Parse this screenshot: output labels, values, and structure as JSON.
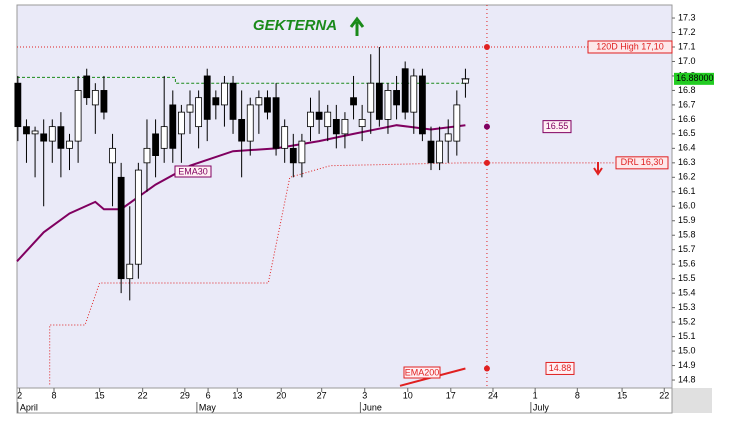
{
  "chart_data": {
    "type": "candlestick",
    "title": "GEKTERNA",
    "title_color": "#1a8a1a",
    "background": "#eaeaf8",
    "up_color": "#ffffff",
    "down_color": "#000000",
    "xlim": [
      -0.1,
      76
    ],
    "ylim": [
      14.745,
      17.39
    ],
    "yticks": [
      17.3,
      17.2,
      17.1,
      {
        "value": 17,
        "label": "17.0"
      },
      16.9,
      16.8,
      16.7,
      16.6,
      16.5,
      16.4,
      16.3,
      16.2,
      16.1,
      {
        "value": 16,
        "label": "16.0"
      },
      15.9,
      15.8,
      15.7,
      15.6,
      15.5,
      15.4,
      15.3,
      15.2,
      15.1,
      {
        "value": 15,
        "label": "15.0"
      },
      14.9,
      14.8
    ],
    "xticks": [
      {
        "value": 0.2,
        "label": "2"
      },
      {
        "value": 4.2,
        "label": "8"
      },
      {
        "value": 9.5,
        "label": "15"
      },
      {
        "value": 14.5,
        "label": "22"
      },
      {
        "value": 19.4,
        "label": "29"
      },
      {
        "value": 22.1,
        "label": "6"
      },
      {
        "value": 25.5,
        "label": "13"
      },
      {
        "value": 30.6,
        "label": "20"
      },
      {
        "value": 35.3,
        "label": "27"
      },
      {
        "value": 40.3,
        "label": "3"
      },
      {
        "value": 45.3,
        "label": "10"
      },
      {
        "value": 50.3,
        "label": "17"
      },
      {
        "value": 55.2,
        "label": "24"
      },
      {
        "value": 60.1,
        "label": "1"
      },
      {
        "value": 65,
        "label": "8"
      },
      {
        "value": 70.2,
        "label": "15"
      },
      {
        "value": 75.1,
        "label": "22"
      }
    ],
    "month_labels": [
      {
        "value": 0,
        "label": "April"
      },
      {
        "value": 20.8,
        "label": "May"
      },
      {
        "value": 39.8,
        "label": "June"
      },
      {
        "value": 59.6,
        "label": "July"
      }
    ],
    "x": [
      0,
      1,
      2,
      3,
      4,
      5,
      6,
      7,
      8,
      9,
      10,
      11,
      12,
      13,
      14,
      15,
      16,
      17,
      18,
      19,
      20,
      21,
      22,
      23,
      24,
      25,
      26,
      27,
      28,
      29,
      30,
      31,
      32,
      33,
      34,
      35,
      36,
      37,
      38,
      39,
      40,
      41,
      42,
      43,
      44,
      45,
      46,
      47,
      48,
      49,
      50,
      51,
      52
    ],
    "open": [
      16.85,
      16.55,
      16.5,
      16.5,
      16.45,
      16.55,
      16.4,
      16.45,
      16.9,
      16.7,
      16.8,
      16.3,
      16.2,
      15.5,
      15.6,
      16.3,
      16.5,
      16.4,
      16.7,
      16.5,
      16.65,
      16.55,
      16.9,
      16.75,
      16.7,
      16.85,
      16.6,
      16.45,
      16.7,
      16.75,
      16.75,
      16.4,
      16.4,
      16.3,
      16.55,
      16.65,
      16.55,
      16.6,
      16.5,
      16.75,
      16.55,
      16.65,
      16.85,
      16.6,
      16.8,
      16.95,
      16.65,
      16.9,
      16.45,
      16.3,
      16.45,
      16.45,
      16.85
    ],
    "high": [
      16.9,
      16.6,
      16.55,
      16.6,
      16.6,
      16.65,
      16.5,
      16.9,
      16.95,
      16.85,
      16.9,
      16.5,
      16.3,
      16.0,
      16.3,
      16.6,
      16.6,
      16.9,
      16.8,
      16.7,
      16.8,
      16.8,
      16.95,
      16.8,
      16.9,
      16.9,
      16.8,
      16.75,
      16.8,
      16.8,
      16.85,
      16.6,
      16.5,
      16.5,
      16.75,
      16.8,
      16.7,
      16.7,
      16.65,
      16.9,
      16.7,
      17.05,
      17.1,
      16.85,
      16.9,
      17.0,
      16.95,
      16.95,
      16.55,
      16.55,
      16.6,
      16.8,
      16.95
    ],
    "low": [
      16.45,
      16.3,
      16.2,
      16.0,
      16.3,
      16.2,
      16.25,
      16.3,
      16.7,
      16.5,
      16.6,
      16.0,
      15.4,
      15.35,
      15.5,
      16.1,
      16.2,
      16.3,
      16.3,
      16.3,
      16.5,
      16.4,
      16.45,
      16.6,
      16.55,
      16.5,
      16.2,
      16.35,
      16.5,
      16.6,
      16.35,
      16.3,
      16.2,
      16.2,
      16.45,
      16.5,
      16.45,
      16.4,
      16.4,
      16.6,
      16.45,
      16.5,
      16.55,
      16.5,
      16.6,
      16.6,
      16.5,
      16.45,
      16.25,
      16.25,
      16.3,
      16.35,
      16.75
    ],
    "close": [
      16.55,
      16.5,
      16.52,
      16.45,
      16.55,
      16.4,
      16.45,
      16.8,
      16.75,
      16.8,
      16.65,
      16.4,
      15.5,
      15.6,
      16.25,
      16.4,
      16.35,
      16.55,
      16.4,
      16.65,
      16.7,
      16.75,
      16.6,
      16.7,
      16.85,
      16.6,
      16.45,
      16.7,
      16.75,
      16.65,
      16.4,
      16.55,
      16.3,
      16.45,
      16.65,
      16.6,
      16.65,
      16.5,
      16.6,
      16.7,
      16.6,
      16.85,
      16.6,
      16.8,
      16.7,
      16.65,
      16.9,
      16.5,
      16.3,
      16.45,
      16.5,
      16.7,
      16.88
    ],
    "overlays": [
      {
        "name": "EMA30",
        "color": "#800060",
        "style": "solid",
        "x": [
          -0.1,
          3,
          6,
          9,
          10,
          12,
          16,
          20,
          25,
          30,
          35,
          39,
          44,
          48,
          52
        ],
        "values": [
          15.62,
          15.82,
          15.95,
          16.03,
          15.98,
          15.98,
          16.15,
          16.28,
          16.38,
          16.4,
          16.45,
          16.5,
          16.56,
          16.53,
          16.56
        ]
      },
      {
        "name": "EMA200",
        "color": "#e02020",
        "style": "solid",
        "x": [
          44.4,
          52
        ],
        "values": [
          14.76,
          14.88
        ]
      },
      {
        "color": "#e02020",
        "style": "dotted",
        "x": [
          3.7,
          3.7,
          7.8,
          9.5,
          29.1,
          31.6,
          36.3,
          52
        ],
        "values": [
          14.77,
          15.18,
          15.18,
          15.47,
          15.47,
          16.2,
          16.28,
          16.3
        ]
      },
      {
        "color": "#1a8a1a",
        "style": "dashed",
        "x": [
          -0.1,
          18.3,
          18.3,
          52
        ],
        "values": [
          16.89,
          16.89,
          16.85,
          16.85
        ]
      }
    ],
    "levels": [
      {
        "label": "120D High 17,10",
        "value": 17.1,
        "color": "#e02020"
      },
      {
        "label": "DRL 16,30",
        "value": 16.3,
        "color": "#e02020"
      }
    ],
    "cursor_x": 54.5,
    "markers": [
      {
        "value": 17.1,
        "color": "#e02020"
      },
      {
        "value": 16.55,
        "color": "#800060",
        "label": "16.55"
      },
      {
        "value": 16.3,
        "color": "#e02020"
      },
      {
        "value": 14.88,
        "color": "#e02020",
        "label": "14.88"
      }
    ],
    "last_price": {
      "value": 16.88,
      "label": "16.88000",
      "color": "#22cc22"
    }
  }
}
